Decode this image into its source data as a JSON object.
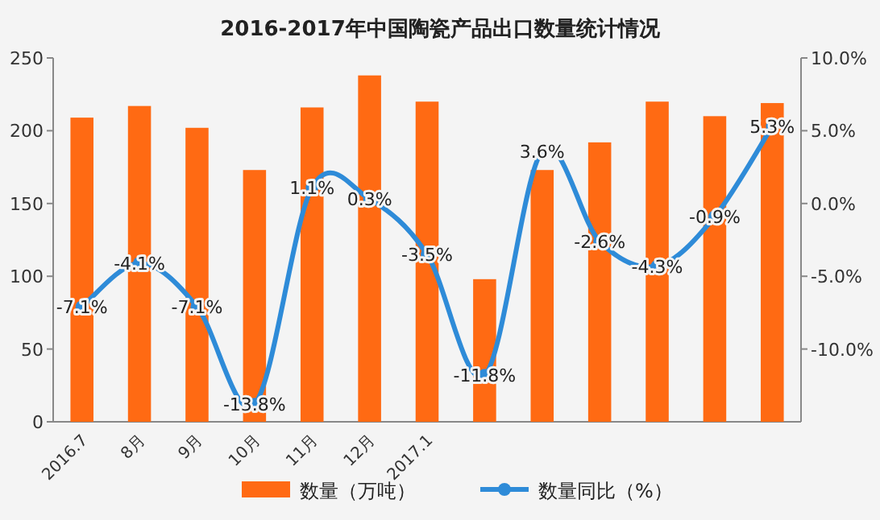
{
  "chart_data": {
    "type": "bar",
    "title": "2016-2017年中国陶瓷产品出口数量统计情况",
    "categories": [
      "2016.7",
      "8月",
      "9月",
      "10月",
      "11月",
      "12月",
      "2017.1",
      null,
      null,
      null,
      null,
      null,
      null
    ],
    "series": [
      {
        "name": "数量（万吨）",
        "color": "#ff6a13",
        "values": [
          209,
          217,
          202,
          173,
          216,
          238,
          220,
          98,
          173,
          192,
          220,
          210,
          219
        ]
      },
      {
        "name": "数量同比（%）",
        "type": "line",
        "axis": "y2",
        "color": "#2e8bd8",
        "marker": "circle",
        "values": [
          -7.1,
          -4.1,
          -7.1,
          -13.8,
          1.1,
          0.3,
          -3.5,
          -11.8,
          3.6,
          -2.6,
          -4.3,
          -0.9,
          5.3
        ],
        "value_labels": [
          "-7.1%",
          "-4.1%",
          "-7.1%",
          "-13.8%",
          "1.1%",
          "0.3%",
          "-3.5%",
          "-11.8%",
          "3.6%",
          "-2.6%",
          "-4.3%",
          "-0.9%",
          "5.3%"
        ]
      }
    ],
    "ylim": [
      0,
      250
    ],
    "yticks": [
      0,
      50,
      100,
      150,
      200,
      250
    ],
    "y2lim": [
      -15,
      10
    ],
    "y2ticks": [
      {
        "value": -10,
        "label": "-10.0%"
      },
      {
        "value": -5,
        "label": "-5.0%"
      },
      {
        "value": 0,
        "label": "0.0%"
      },
      {
        "value": 5,
        "label": "5.0%"
      },
      {
        "value": 10,
        "label": "10.0%"
      }
    ],
    "legend": "bottom"
  }
}
